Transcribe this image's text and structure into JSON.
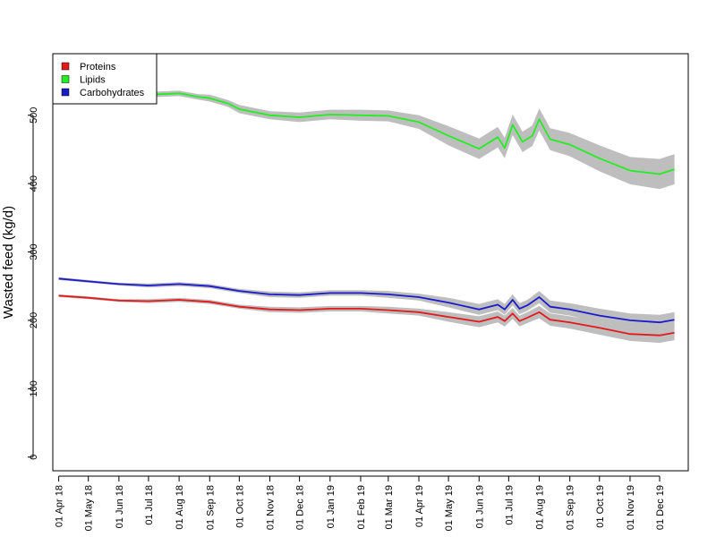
{
  "chart_data": {
    "type": "line",
    "title": "",
    "xlabel": "",
    "ylabel": "Wasted feed (kg/d)",
    "ylim": [
      -20,
      590
    ],
    "yticks": [
      0,
      100,
      200,
      300,
      400,
      500
    ],
    "xlim": [
      "2018-03-26",
      "2019-12-30"
    ],
    "grid": false,
    "legend_position": "top-left",
    "x_ticks": [
      {
        "date": "2018-04-01",
        "label": "01 Apr 18"
      },
      {
        "date": "2018-05-01",
        "label": "01 May 18"
      },
      {
        "date": "2018-06-01",
        "label": "01 Jun 18"
      },
      {
        "date": "2018-07-01",
        "label": "01 Jul 18"
      },
      {
        "date": "2018-08-01",
        "label": "01 Aug 18"
      },
      {
        "date": "2018-09-01",
        "label": "01 Sep 18"
      },
      {
        "date": "2018-10-01",
        "label": "01 Oct 18"
      },
      {
        "date": "2018-11-01",
        "label": "01 Nov 18"
      },
      {
        "date": "2018-12-01",
        "label": "01 Dec 18"
      },
      {
        "date": "2019-01-01",
        "label": "01 Jan 19"
      },
      {
        "date": "2019-02-01",
        "label": "01 Feb 19"
      },
      {
        "date": "2019-03-01",
        "label": "01 Mar 19"
      },
      {
        "date": "2019-04-01",
        "label": "01 Apr 19"
      },
      {
        "date": "2019-05-01",
        "label": "01 May 19"
      },
      {
        "date": "2019-06-01",
        "label": "01 Jun 19"
      },
      {
        "date": "2019-07-01",
        "label": "01 Jul 19"
      },
      {
        "date": "2019-08-01",
        "label": "01 Aug 19"
      },
      {
        "date": "2019-09-01",
        "label": "01 Sep 19"
      },
      {
        "date": "2019-10-01",
        "label": "01 Oct 19"
      },
      {
        "date": "2019-11-01",
        "label": "01 Nov 19"
      },
      {
        "date": "2019-12-01",
        "label": "01 Dec 19"
      }
    ],
    "band_color": "#bebebe",
    "series": [
      {
        "name": "Proteins",
        "color": "#e31a1c",
        "points": [
          [
            "2018-04-01",
            236,
            2
          ],
          [
            "2018-05-01",
            233,
            2
          ],
          [
            "2018-06-01",
            229,
            2
          ],
          [
            "2018-07-01",
            228,
            3
          ],
          [
            "2018-08-01",
            230,
            3
          ],
          [
            "2018-09-01",
            227,
            3
          ],
          [
            "2018-10-01",
            220,
            3
          ],
          [
            "2018-11-01",
            216,
            4
          ],
          [
            "2018-12-01",
            215,
            4
          ],
          [
            "2019-01-01",
            217,
            4
          ],
          [
            "2019-02-01",
            217,
            4
          ],
          [
            "2019-03-01",
            215,
            5
          ],
          [
            "2019-04-01",
            212,
            5
          ],
          [
            "2019-05-01",
            205,
            7
          ],
          [
            "2019-06-01",
            198,
            8
          ],
          [
            "2019-06-20",
            205,
            8
          ],
          [
            "2019-06-27",
            199,
            8
          ],
          [
            "2019-07-05",
            210,
            8
          ],
          [
            "2019-07-12",
            199,
            8
          ],
          [
            "2019-07-20",
            204,
            8
          ],
          [
            "2019-08-01",
            212,
            9
          ],
          [
            "2019-08-12",
            201,
            9
          ],
          [
            "2019-09-01",
            197,
            9
          ],
          [
            "2019-10-01",
            189,
            10
          ],
          [
            "2019-11-01",
            180,
            10
          ],
          [
            "2019-12-01",
            178,
            11
          ],
          [
            "2019-12-16",
            182,
            11
          ]
        ]
      },
      {
        "name": "Lipids",
        "color": "#22ee22",
        "points": [
          [
            "2018-06-10",
            527,
            4
          ],
          [
            "2018-07-01",
            530,
            4
          ],
          [
            "2018-08-01",
            532,
            4
          ],
          [
            "2018-08-20",
            527,
            4
          ],
          [
            "2018-09-01",
            525,
            5
          ],
          [
            "2018-09-20",
            517,
            5
          ],
          [
            "2018-10-01",
            509,
            6
          ],
          [
            "2018-11-01",
            500,
            6
          ],
          [
            "2018-12-01",
            497,
            7
          ],
          [
            "2019-01-01",
            501,
            7
          ],
          [
            "2019-02-01",
            500,
            8
          ],
          [
            "2019-03-01",
            499,
            8
          ],
          [
            "2019-04-01",
            490,
            10
          ],
          [
            "2019-05-01",
            470,
            14
          ],
          [
            "2019-06-01",
            451,
            15
          ],
          [
            "2019-06-20",
            468,
            15
          ],
          [
            "2019-06-27",
            452,
            15
          ],
          [
            "2019-07-05",
            486,
            15
          ],
          [
            "2019-07-15",
            461,
            15
          ],
          [
            "2019-07-25",
            470,
            15
          ],
          [
            "2019-08-01",
            494,
            16
          ],
          [
            "2019-08-12",
            465,
            16
          ],
          [
            "2019-09-01",
            457,
            17
          ],
          [
            "2019-10-01",
            437,
            19
          ],
          [
            "2019-11-01",
            419,
            20
          ],
          [
            "2019-12-01",
            414,
            22
          ],
          [
            "2019-12-16",
            421,
            22
          ]
        ]
      },
      {
        "name": "Carbohydrates",
        "color": "#1a1acc",
        "points": [
          [
            "2018-04-01",
            261,
            2
          ],
          [
            "2018-05-01",
            257,
            2
          ],
          [
            "2018-06-01",
            253,
            2
          ],
          [
            "2018-07-01",
            251,
            3
          ],
          [
            "2018-08-01",
            253,
            3
          ],
          [
            "2018-09-01",
            250,
            3
          ],
          [
            "2018-10-01",
            243,
            3
          ],
          [
            "2018-11-01",
            238,
            4
          ],
          [
            "2018-12-01",
            237,
            4
          ],
          [
            "2019-01-01",
            240,
            4
          ],
          [
            "2019-02-01",
            240,
            4
          ],
          [
            "2019-03-01",
            238,
            5
          ],
          [
            "2019-04-01",
            234,
            5
          ],
          [
            "2019-05-01",
            226,
            7
          ],
          [
            "2019-06-01",
            216,
            8
          ],
          [
            "2019-06-20",
            223,
            8
          ],
          [
            "2019-06-27",
            216,
            8
          ],
          [
            "2019-07-05",
            230,
            8
          ],
          [
            "2019-07-12",
            217,
            8
          ],
          [
            "2019-07-20",
            222,
            8
          ],
          [
            "2019-08-01",
            234,
            9
          ],
          [
            "2019-08-12",
            220,
            9
          ],
          [
            "2019-09-01",
            216,
            9
          ],
          [
            "2019-10-01",
            207,
            10
          ],
          [
            "2019-11-01",
            200,
            10
          ],
          [
            "2019-12-01",
            197,
            11
          ],
          [
            "2019-12-16",
            201,
            11
          ]
        ]
      }
    ]
  }
}
